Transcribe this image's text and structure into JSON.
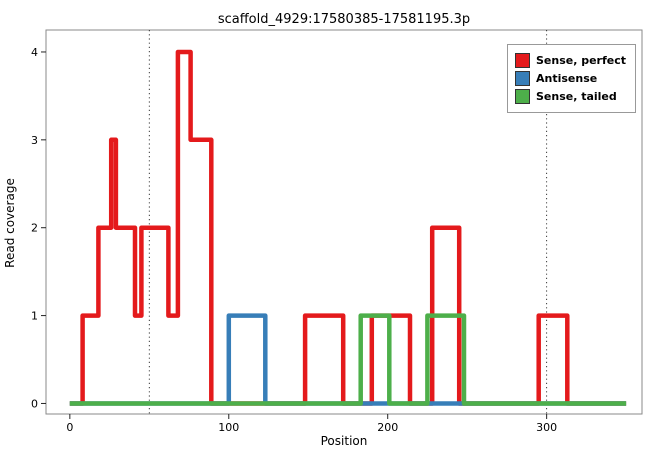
{
  "chart_data": {
    "type": "line",
    "line_style": "step",
    "title": "scaffold_4929:17580385-17581195.3p",
    "xlabel": "Position",
    "ylabel": "Read coverage",
    "xlim": [
      -15,
      360
    ],
    "ylim": [
      -0.12,
      4.25
    ],
    "xticks": [
      0,
      100,
      200,
      300
    ],
    "yticks": [
      0,
      1,
      2,
      3,
      4
    ],
    "vlines": [
      50,
      300
    ],
    "legend_position": "top-right",
    "grid": false,
    "series": [
      {
        "name": "Sense, perfect",
        "color": "#e41a1c",
        "steps": [
          [
            0,
            0
          ],
          [
            8,
            1
          ],
          [
            18,
            2
          ],
          [
            26,
            3
          ],
          [
            29,
            2
          ],
          [
            41,
            1
          ],
          [
            45,
            2
          ],
          [
            62,
            1
          ],
          [
            68,
            4
          ],
          [
            76,
            3
          ],
          [
            89,
            0
          ],
          [
            148,
            1
          ],
          [
            172,
            0
          ],
          [
            190,
            1
          ],
          [
            214,
            0
          ],
          [
            228,
            2
          ],
          [
            245,
            0
          ],
          [
            295,
            1
          ],
          [
            313,
            0
          ],
          [
            350,
            0
          ]
        ]
      },
      {
        "name": "Antisense",
        "color": "#377eb8",
        "steps": [
          [
            0,
            0
          ],
          [
            100,
            1
          ],
          [
            123,
            0
          ],
          [
            350,
            0
          ]
        ]
      },
      {
        "name": "Sense, tailed",
        "color": "#4daf4a",
        "steps": [
          [
            0,
            0
          ],
          [
            183,
            1
          ],
          [
            201,
            0
          ],
          [
            225,
            1
          ],
          [
            248,
            0
          ],
          [
            350,
            0
          ]
        ]
      }
    ]
  }
}
